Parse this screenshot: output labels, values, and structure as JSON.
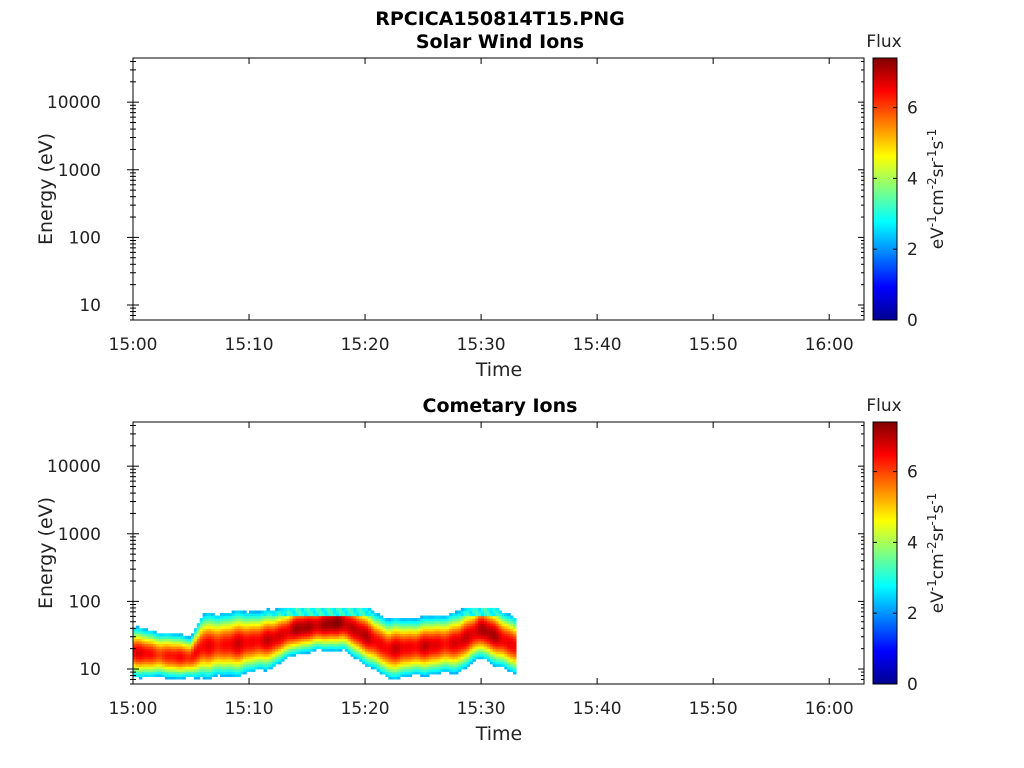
{
  "figure": {
    "title": "RPCICA150814T15.PNG",
    "background": "#ffffff"
  },
  "chart_data": [
    {
      "type": "heatmap",
      "title": "Solar Wind Ions",
      "xlabel": "Time",
      "ylabel": "Energy (eV)",
      "x_tick_labels": [
        "15:00",
        "15:10",
        "15:20",
        "15:30",
        "15:40",
        "15:50",
        "16:00"
      ],
      "x_range_minutes": [
        0,
        63
      ],
      "y_scale": "log",
      "y_tick_values": [
        10,
        100,
        1000,
        10000
      ],
      "y_tick_labels": [
        "10",
        "100",
        "1000",
        "10000"
      ],
      "y_range": [
        6,
        45000
      ],
      "colorbar": {
        "label": "Flux",
        "unit": "eV-1cm-2sr-1s-1",
        "ticks": [
          0,
          2,
          4,
          6
        ],
        "range": [
          0,
          7.4
        ],
        "colormap": "jet"
      },
      "data_present": false,
      "grid": false
    },
    {
      "type": "heatmap",
      "title": "Cometary Ions",
      "xlabel": "Time",
      "ylabel": "Energy (eV)",
      "x_tick_labels": [
        "15:00",
        "15:10",
        "15:20",
        "15:30",
        "15:40",
        "15:50",
        "16:00"
      ],
      "x_range_minutes": [
        0,
        63
      ],
      "y_scale": "log",
      "y_tick_values": [
        10,
        100,
        1000,
        10000
      ],
      "y_tick_labels": [
        "10",
        "100",
        "1000",
        "10000"
      ],
      "y_range": [
        6,
        45000
      ],
      "colorbar": {
        "label": "Flux",
        "unit": "eV-1cm-2sr-1s-1",
        "ticks": [
          0,
          2,
          4,
          6
        ],
        "range": [
          0,
          7.4
        ],
        "colormap": "jet"
      },
      "data_present": true,
      "data_time_range_minutes": [
        0,
        33
      ],
      "data_energy_range": [
        6,
        80
      ],
      "grid": false,
      "flux_profile": [
        {
          "t": 0,
          "peak_energy": 18,
          "peak_flux": 6.6,
          "width": 0.35
        },
        {
          "t": 3,
          "peak_energy": 16,
          "peak_flux": 6.2,
          "width": 0.32
        },
        {
          "t": 5,
          "peak_energy": 15,
          "peak_flux": 6.5,
          "width": 0.3
        },
        {
          "t": 6,
          "peak_energy": 22,
          "peak_flux": 6.4,
          "width": 0.45
        },
        {
          "t": 9,
          "peak_energy": 24,
          "peak_flux": 6.6,
          "width": 0.45
        },
        {
          "t": 12,
          "peak_energy": 28,
          "peak_flux": 6.7,
          "width": 0.4
        },
        {
          "t": 14,
          "peak_energy": 40,
          "peak_flux": 7.0,
          "width": 0.35
        },
        {
          "t": 16,
          "peak_energy": 45,
          "peak_flux": 7.1,
          "width": 0.35
        },
        {
          "t": 18,
          "peak_energy": 50,
          "peak_flux": 7.2,
          "width": 0.38
        },
        {
          "t": 20,
          "peak_energy": 32,
          "peak_flux": 6.8,
          "width": 0.4
        },
        {
          "t": 22,
          "peak_energy": 20,
          "peak_flux": 6.6,
          "width": 0.42
        },
        {
          "t": 25,
          "peak_energy": 22,
          "peak_flux": 6.7,
          "width": 0.4
        },
        {
          "t": 28,
          "peak_energy": 25,
          "peak_flux": 6.6,
          "width": 0.42
        },
        {
          "t": 30,
          "peak_energy": 40,
          "peak_flux": 7.1,
          "width": 0.4
        },
        {
          "t": 33,
          "peak_energy": 22,
          "peak_flux": 6.6,
          "width": 0.4
        }
      ]
    }
  ]
}
